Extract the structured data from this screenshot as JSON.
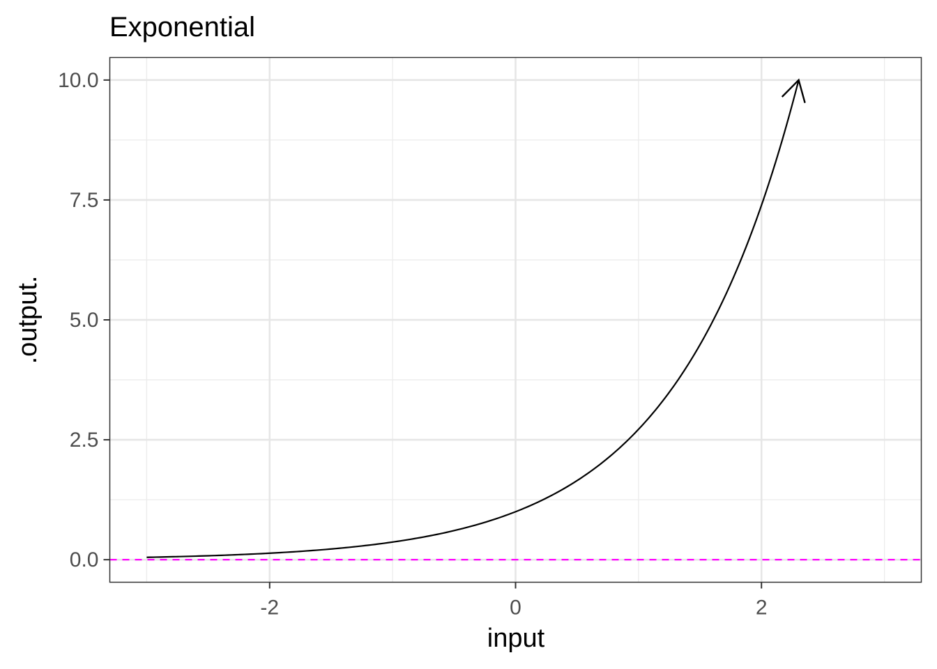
{
  "chart_data": {
    "type": "line",
    "title": "Exponential",
    "xlabel": "input",
    "ylabel": ".output.",
    "xlim": [
      -3.3,
      3.3
    ],
    "ylim": [
      -0.47,
      10.47
    ],
    "x_ticks": [
      -2,
      0,
      2
    ],
    "x_tick_labels": [
      "-2",
      "0",
      "2"
    ],
    "y_ticks": [
      0,
      2.5,
      5,
      7.5,
      10
    ],
    "y_tick_labels": [
      "0.0",
      "2.5",
      "5.0",
      "7.5",
      "10.0"
    ],
    "grid": true,
    "series": [
      {
        "function": "exp(x)",
        "x_range": [
          -3,
          2.3026
        ],
        "color": "#000000",
        "arrow_at_end": true
      }
    ],
    "reference_lines": [
      {
        "orientation": "horizontal",
        "y": 0,
        "color": "#ff00ff",
        "linestyle": "dashed"
      }
    ]
  }
}
